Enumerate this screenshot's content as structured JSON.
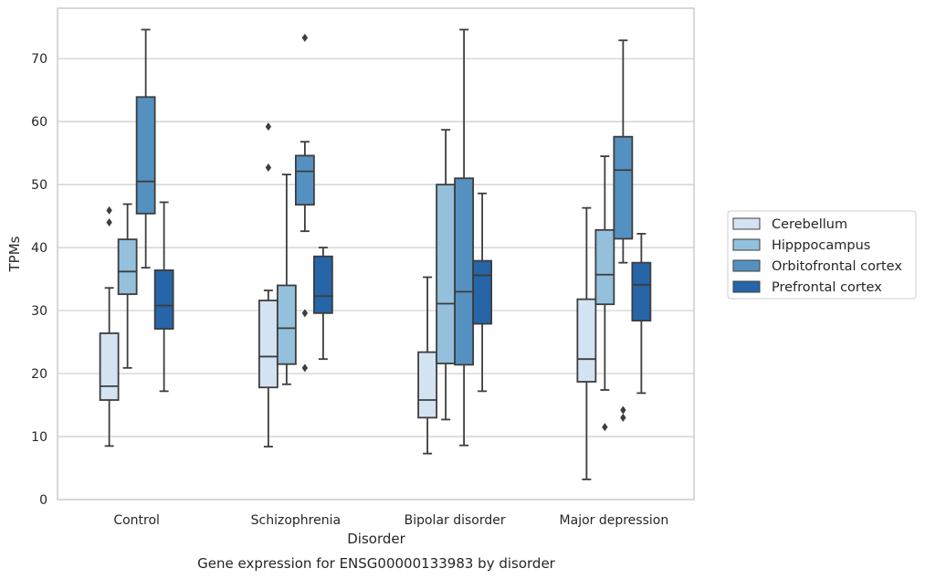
{
  "chart_data": {
    "type": "box",
    "caption": "Gene expression for ENSG00000133983 by disorder",
    "xlabel": "Disorder",
    "ylabel": "TPMs",
    "ylim": [
      0,
      78
    ],
    "yticks": [
      0,
      10,
      20,
      30,
      40,
      50,
      60,
      70
    ],
    "grid": "horizontal",
    "legend_position": "right",
    "categories": [
      "Control",
      "Schizophrenia",
      "Bipolar disorder",
      "Major depression"
    ],
    "series": [
      {
        "name": "Cerebellum",
        "color": "#d3e3f2",
        "boxes": [
          {
            "min": 8.5,
            "q1": 15.8,
            "median": 18.0,
            "q3": 26.4,
            "max": 33.6,
            "outliers": [
              44.0,
              45.9
            ]
          },
          {
            "min": 8.4,
            "q1": 17.8,
            "median": 22.7,
            "q3": 31.6,
            "max": 33.2,
            "outliers": [
              52.7,
              59.2
            ]
          },
          {
            "min": 7.3,
            "q1": 13.0,
            "median": 15.8,
            "q3": 23.4,
            "max": 35.3,
            "outliers": []
          },
          {
            "min": 3.2,
            "q1": 18.7,
            "median": 22.3,
            "q3": 31.8,
            "max": 46.3,
            "outliers": []
          }
        ]
      },
      {
        "name": "Hipppocampus",
        "color": "#94c0dc",
        "boxes": [
          {
            "min": 20.9,
            "q1": 32.6,
            "median": 36.2,
            "q3": 41.3,
            "max": 46.9,
            "outliers": []
          },
          {
            "min": 18.3,
            "q1": 21.5,
            "median": 27.2,
            "q3": 34.0,
            "max": 51.6,
            "outliers": []
          },
          {
            "min": 12.7,
            "q1": 21.6,
            "median": 31.1,
            "q3": 50.0,
            "max": 58.7,
            "outliers": []
          },
          {
            "min": 17.4,
            "q1": 31.0,
            "median": 35.7,
            "q3": 42.8,
            "max": 54.5,
            "outliers": [
              11.5
            ]
          }
        ]
      },
      {
        "name": "Orbitofrontal cortex",
        "color": "#5591c0",
        "boxes": [
          {
            "min": 36.8,
            "q1": 45.4,
            "median": 50.5,
            "q3": 63.9,
            "max": 74.6,
            "outliers": []
          },
          {
            "min": 42.6,
            "q1": 46.8,
            "median": 52.1,
            "q3": 54.6,
            "max": 56.8,
            "outliers": [
              73.3,
              29.6,
              20.9
            ]
          },
          {
            "min": 8.6,
            "q1": 21.4,
            "median": 33.0,
            "q3": 51.0,
            "max": 74.6,
            "outliers": []
          },
          {
            "min": 37.6,
            "q1": 41.4,
            "median": 52.3,
            "q3": 57.6,
            "max": 72.9,
            "outliers": [
              14.2,
              13.0
            ]
          }
        ]
      },
      {
        "name": "Prefrontal cortex",
        "color": "#2665a8",
        "boxes": [
          {
            "min": 17.2,
            "q1": 27.1,
            "median": 30.8,
            "q3": 36.4,
            "max": 47.2,
            "outliers": []
          },
          {
            "min": 22.3,
            "q1": 29.6,
            "median": 32.3,
            "q3": 38.6,
            "max": 40.0,
            "outliers": []
          },
          {
            "min": 17.2,
            "q1": 27.9,
            "median": 35.6,
            "q3": 37.9,
            "max": 48.6,
            "outliers": []
          },
          {
            "min": 16.9,
            "q1": 28.4,
            "median": 34.1,
            "q3": 37.6,
            "max": 42.2,
            "outliers": []
          }
        ]
      }
    ]
  }
}
